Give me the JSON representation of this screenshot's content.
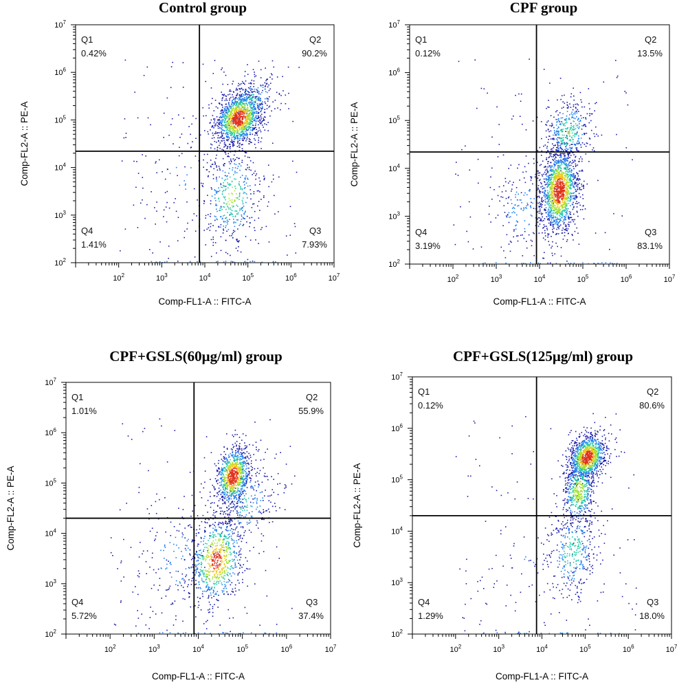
{
  "chart_data": [
    {
      "type": "scatter",
      "title": "Control group",
      "xlabel": "Comp-FL1-A :: FITC-A",
      "ylabel": "Comp-FL2-A :: PE-A",
      "xscale": "log",
      "yscale": "log",
      "xlim": [
        10,
        10000000
      ],
      "ylim": [
        100,
        10000000
      ],
      "x_ticks": [
        "2",
        "3",
        "4",
        "5",
        "6",
        "7"
      ],
      "y_ticks": [
        "2",
        "3",
        "4",
        "5",
        "6",
        "7"
      ],
      "gate": {
        "x": 7500,
        "y": 22000
      },
      "quadrants": [
        {
          "name": "Q1",
          "value": "0.42%",
          "position": "top-left"
        },
        {
          "name": "Q2",
          "value": "90.2%",
          "position": "top-right"
        },
        {
          "name": "Q3",
          "value": "7.93%",
          "position": "bottom-right"
        },
        {
          "name": "Q4",
          "value": "1.41%",
          "position": "bottom-left"
        }
      ],
      "population_clusters": [
        {
          "x": 60000,
          "y": 110000,
          "spread_x": 0.28,
          "spread_y": 0.28,
          "count": 1300
        },
        {
          "x": 120000,
          "y": 260000,
          "spread_x": 0.35,
          "spread_y": 0.3,
          "count": 260
        },
        {
          "x": 40000,
          "y": 2500,
          "spread_x": 0.35,
          "spread_y": 0.55,
          "count": 420
        },
        {
          "x": 3000,
          "y": 8000,
          "spread_x": 0.7,
          "spread_y": 0.7,
          "count": 90
        }
      ]
    },
    {
      "type": "scatter",
      "title": "CPF group",
      "xlabel": "Comp-FL1-A :: FITC-A",
      "ylabel": "Comp-FL2-A :: PE-A",
      "xscale": "log",
      "yscale": "log",
      "xlim": [
        10,
        10000000
      ],
      "ylim": [
        100,
        10000000
      ],
      "x_ticks": [
        "2",
        "3",
        "4",
        "5",
        "6",
        "7"
      ],
      "y_ticks": [
        "2",
        "3",
        "4",
        "5",
        "6",
        "7"
      ],
      "gate": {
        "x": 8500,
        "y": 22000
      },
      "quadrants": [
        {
          "name": "Q1",
          "value": "0.12%",
          "position": "top-left"
        },
        {
          "name": "Q2",
          "value": "13.5%",
          "position": "top-right"
        },
        {
          "name": "Q3",
          "value": "83.1%",
          "position": "bottom-right"
        },
        {
          "name": "Q4",
          "value": "3.19%",
          "position": "bottom-left"
        }
      ],
      "population_clusters": [
        {
          "x": 28000,
          "y": 3500,
          "spread_x": 0.22,
          "spread_y": 0.45,
          "count": 1500
        },
        {
          "x": 45000,
          "y": 60000,
          "spread_x": 0.28,
          "spread_y": 0.35,
          "count": 380
        },
        {
          "x": 4000,
          "y": 1500,
          "spread_x": 0.4,
          "spread_y": 0.5,
          "count": 180
        }
      ]
    },
    {
      "type": "scatter",
      "title": "CPF+GSLS(60μg/ml) group",
      "xlabel": "Comp-FL1-A :: FITC-A",
      "ylabel": "Comp-FL2-A :: PE-A",
      "xscale": "log",
      "yscale": "log",
      "xlim": [
        10,
        10000000
      ],
      "ylim": [
        100,
        10000000
      ],
      "x_ticks": [
        "2",
        "3",
        "4",
        "5",
        "6",
        "7"
      ],
      "y_ticks": [
        "2",
        "3",
        "4",
        "5",
        "6",
        "7"
      ],
      "gate": {
        "x": 8000,
        "y": 20000
      },
      "quadrants": [
        {
          "name": "Q1",
          "value": "1.01%",
          "position": "top-left"
        },
        {
          "name": "Q2",
          "value": "55.9%",
          "position": "top-right"
        },
        {
          "name": "Q3",
          "value": "37.4%",
          "position": "bottom-right"
        },
        {
          "name": "Q4",
          "value": "5.72%",
          "position": "bottom-left"
        }
      ],
      "population_clusters": [
        {
          "x": 60000,
          "y": 140000,
          "spread_x": 0.2,
          "spread_y": 0.3,
          "count": 900
        },
        {
          "x": 25000,
          "y": 3000,
          "spread_x": 0.32,
          "spread_y": 0.45,
          "count": 750
        },
        {
          "x": 120000,
          "y": 40000,
          "spread_x": 0.35,
          "spread_y": 0.4,
          "count": 250
        },
        {
          "x": 3000,
          "y": 3000,
          "spread_x": 0.5,
          "spread_y": 0.6,
          "count": 160
        }
      ]
    },
    {
      "type": "scatter",
      "title": "CPF+GSLS(125μg/ml) group",
      "xlabel": "Comp-FL1-A :: FITC-A",
      "ylabel": "Comp-FL2-A :: PE-A",
      "xscale": "log",
      "yscale": "log",
      "xlim": [
        10,
        10000000
      ],
      "ylim": [
        100,
        10000000
      ],
      "x_ticks": [
        "2",
        "3",
        "4",
        "5",
        "6",
        "7"
      ],
      "y_ticks": [
        "2",
        "3",
        "4",
        "5",
        "6",
        "7"
      ],
      "gate": {
        "x": 7500,
        "y": 20000
      },
      "quadrants": [
        {
          "name": "Q1",
          "value": "0.12%",
          "position": "top-left"
        },
        {
          "name": "Q2",
          "value": "80.6%",
          "position": "top-right"
        },
        {
          "name": "Q3",
          "value": "18.0%",
          "position": "bottom-right"
        },
        {
          "name": "Q4",
          "value": "1.29%",
          "position": "bottom-left"
        }
      ],
      "population_clusters": [
        {
          "x": 110000,
          "y": 280000,
          "spread_x": 0.22,
          "spread_y": 0.22,
          "count": 1100
        },
        {
          "x": 70000,
          "y": 60000,
          "spread_x": 0.2,
          "spread_y": 0.35,
          "count": 500
        },
        {
          "x": 50000,
          "y": 4000,
          "spread_x": 0.3,
          "spread_y": 0.45,
          "count": 350
        },
        {
          "x": 5000,
          "y": 3000,
          "spread_x": 0.6,
          "spread_y": 0.6,
          "count": 60
        }
      ]
    }
  ],
  "colors": {
    "density_low": "#1a1aa8",
    "density_mid1": "#1f7ff2",
    "density_mid2": "#23c8a8",
    "density_mid3": "#a6e22b",
    "density_high1": "#f2c71a",
    "density_high2": "#e2311a",
    "axis": "#000000",
    "gate": "#000000"
  }
}
